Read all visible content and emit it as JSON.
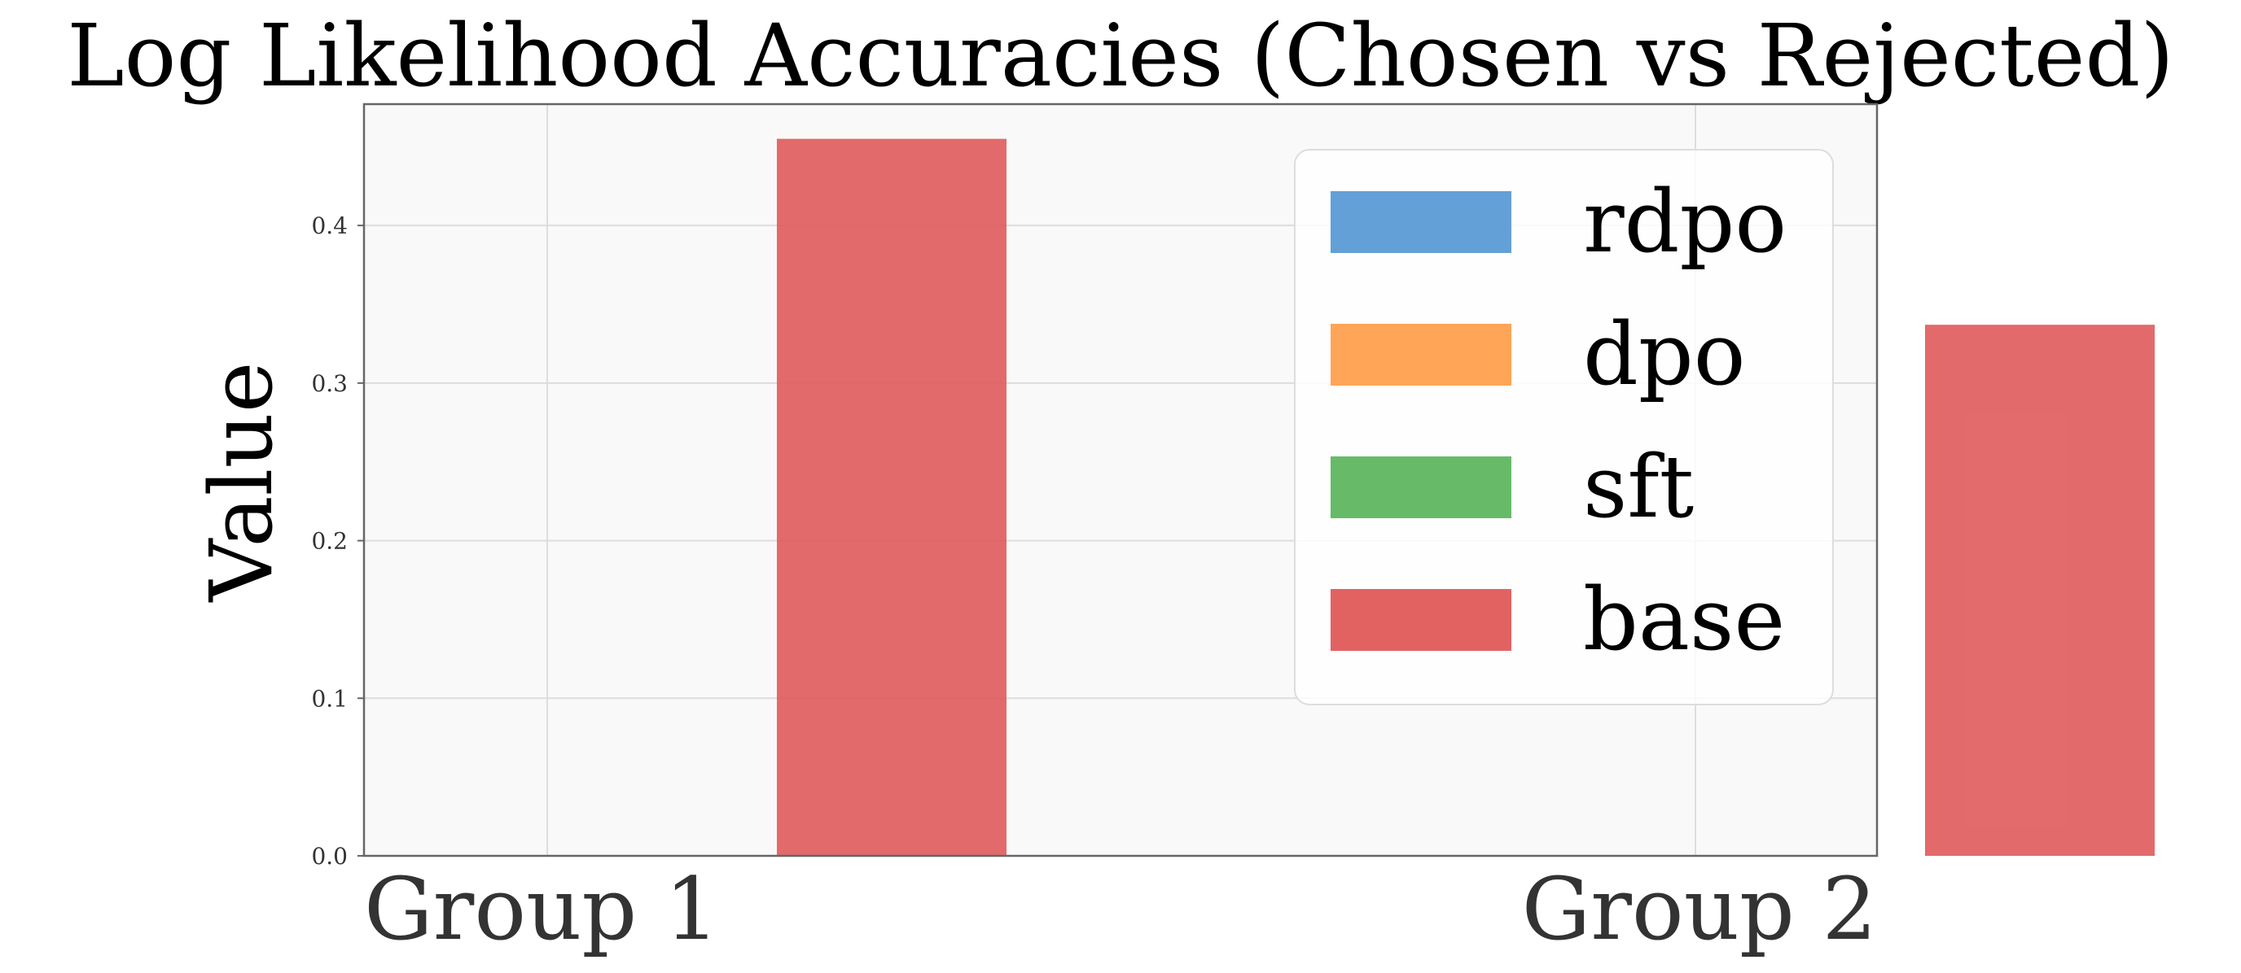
{
  "chart_data": {
    "type": "bar",
    "title": "Log Likelihood Accuracies (Chosen vs Rejected)",
    "xlabel": "",
    "ylabel": "Value",
    "categories": [
      "Group 1",
      "Group 2"
    ],
    "series": [
      {
        "name": "rdpo",
        "color": "#5b9bd5",
        "values": [
          0,
          0
        ]
      },
      {
        "name": "dpo",
        "color": "#ffa04f",
        "values": [
          0,
          0
        ]
      },
      {
        "name": "sft",
        "color": "#5fb760",
        "values": [
          0,
          0
        ]
      },
      {
        "name": "base",
        "color": "#e05a5a",
        "values": [
          0.455,
          0.337
        ]
      }
    ],
    "ylim": [
      0,
      0.477
    ],
    "yticks": [
      "0.0",
      "0.1",
      "0.2",
      "0.3",
      "0.4"
    ],
    "ytick_values": [
      0.0,
      0.1,
      0.2,
      0.3,
      0.4
    ],
    "grid": true,
    "legend_position": "top-right"
  },
  "colors": {
    "plot_background": "#f9f9f9",
    "grid": "#dddddd",
    "axes": "#666666"
  }
}
